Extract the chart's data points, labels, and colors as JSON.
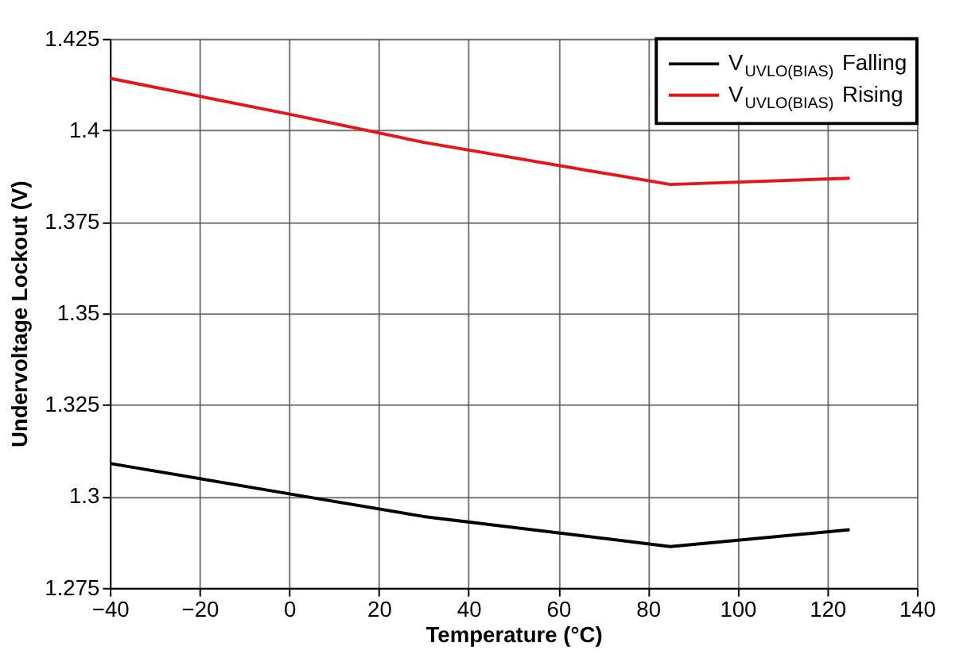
{
  "chart_data": {
    "type": "line",
    "xlabel": "Temperature (°C)",
    "ylabel": "Undervoltage Lockout (V)",
    "x": [
      -40,
      0,
      30,
      85,
      125
    ],
    "series": [
      {
        "name": "V$_{UVLO(BIAS)}$ Falling",
        "color": "#000000",
        "values": [
          1.309,
          1.3007,
          1.2945,
          1.2863,
          1.2909
        ]
      },
      {
        "name": "V$_{UVLO(BIAS)}$ Rising",
        "color": "#e8141c",
        "values": [
          1.4142,
          1.4044,
          1.3967,
          1.3852,
          1.3869
        ]
      }
    ],
    "xlim": [
      -40,
      140
    ],
    "xticks": [
      -40,
      -20,
      0,
      20,
      40,
      60,
      80,
      100,
      120,
      140
    ],
    "ylim": [
      1.275,
      1.425
    ],
    "yticks": [
      1.275,
      1.3,
      1.325,
      1.35,
      1.375,
      1.4,
      1.425
    ],
    "grid": true,
    "legend": "top right",
    "marker": "none",
    "line_style": "solid"
  }
}
